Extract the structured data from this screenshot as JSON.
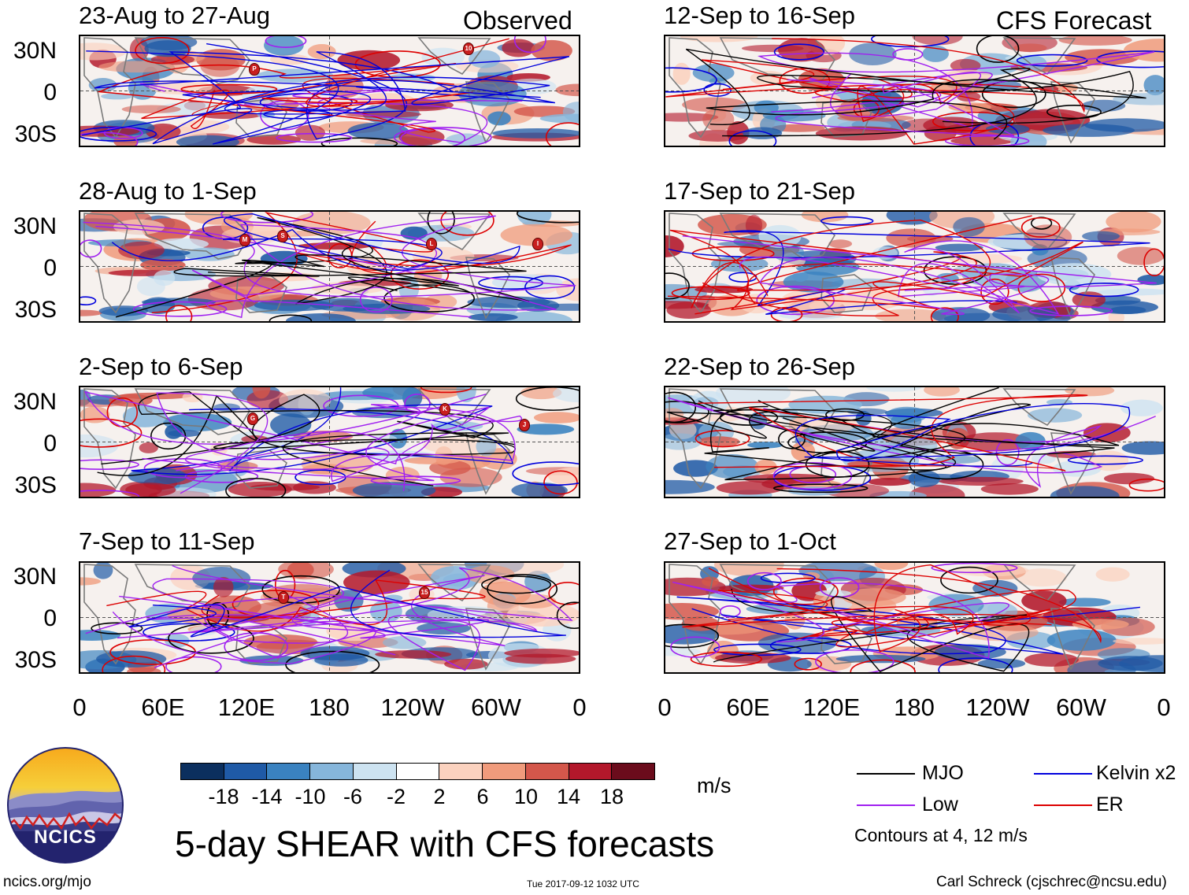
{
  "headers": {
    "observed": "Observed",
    "forecast": "CFS Forecast"
  },
  "panels_left": [
    {
      "title": "23-Aug to 27-Aug"
    },
    {
      "title": "28-Aug to 1-Sep"
    },
    {
      "title": "2-Sep to 6-Sep"
    },
    {
      "title": "7-Sep to 11-Sep"
    }
  ],
  "panels_right": [
    {
      "title": "12-Sep to 16-Sep"
    },
    {
      "title": "17-Sep to 21-Sep"
    },
    {
      "title": "22-Sep to 26-Sep"
    },
    {
      "title": "27-Sep to 1-Oct"
    }
  ],
  "lat_labels": [
    "30N",
    "0",
    "30S"
  ],
  "lon_labels": [
    "0",
    "60E",
    "120E",
    "180",
    "120W",
    "60W",
    "0"
  ],
  "colorbar": {
    "unit": "m/s",
    "ticks": [
      "-18",
      "-14",
      "-10",
      "-6",
      "-2",
      "2",
      "6",
      "10",
      "14",
      "18"
    ],
    "colors": [
      "#0b2f5e",
      "#1f5aa6",
      "#3a82c0",
      "#86b6db",
      "#cde3f1",
      "#ffffff",
      "#fbd2bf",
      "#f09b7c",
      "#d4574b",
      "#b3182b",
      "#6b0c1c"
    ]
  },
  "legend": {
    "items": [
      {
        "label": "MJO",
        "color": "#000000"
      },
      {
        "label": "Kelvin x2",
        "color": "#0000dd"
      },
      {
        "label": "Low",
        "color": "#a020f0"
      },
      {
        "label": "ER",
        "color": "#dd0000"
      }
    ],
    "note": "Contours at 4, 12 m/s"
  },
  "main_title": "5-day SHEAR with CFS forecasts",
  "logo_text": "NCICS",
  "footer": {
    "url": "ncics.org/mjo",
    "timestamp": "Tue 2017-09-12 1032 UTC",
    "credit": "Carl Schreck (cjschrec@ncsu.edu)"
  },
  "storm_markers": [
    {
      "panel": 0,
      "label": "P"
    },
    {
      "panel": 0,
      "label": "10"
    },
    {
      "panel": 1,
      "label": "M"
    },
    {
      "panel": 1,
      "label": "S"
    },
    {
      "panel": 1,
      "label": "L"
    },
    {
      "panel": 1,
      "label": "I"
    },
    {
      "panel": 2,
      "label": "G"
    },
    {
      "panel": 2,
      "label": "K"
    },
    {
      "panel": 2,
      "label": "J"
    },
    {
      "panel": 3,
      "label": "T"
    },
    {
      "panel": 3,
      "label": "15"
    }
  ]
}
